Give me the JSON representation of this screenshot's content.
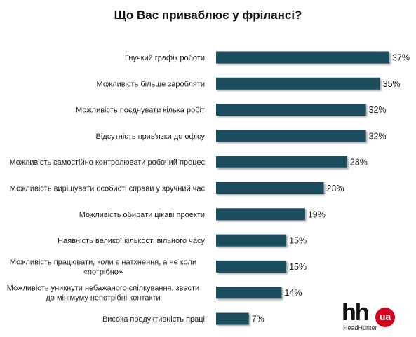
{
  "chart_data": {
    "type": "bar",
    "orientation": "horizontal",
    "title": "Що Вас приваблює у фрілансі?",
    "xlabel": "",
    "ylabel": "",
    "xlim": [
      0,
      40
    ],
    "grid": false,
    "value_suffix": "%",
    "bar_color": "#1c4d5e",
    "categories": [
      [
        "Гнучкий графік роботи"
      ],
      [
        "Можливість більше заробляти"
      ],
      [
        "Можливість поєднувати кілька робіт"
      ],
      [
        "Відсутність прив'язки до офісу"
      ],
      [
        "Можливість самостійно контролювати робочий процес"
      ],
      [
        "Можливість вирішувати особисті справи у зручний час"
      ],
      [
        "Можливість обирати цікаві проекти"
      ],
      [
        "Наявність великої кількості вільного часу"
      ],
      [
        "Можливість працювати, коли є натхнення, а не коли",
        "«потрібно»"
      ],
      [
        "Можливість уникнути небажаного спілкування, звести",
        "до мінімуму непотрібні контакти"
      ],
      [
        "Висока продуктивність праці"
      ]
    ],
    "values": [
      37,
      35,
      32,
      32,
      28,
      23,
      19,
      15,
      15,
      14,
      7
    ]
  },
  "logo": {
    "mark": "hh",
    "badge": "ua",
    "subtitle": "HeadHunter"
  }
}
